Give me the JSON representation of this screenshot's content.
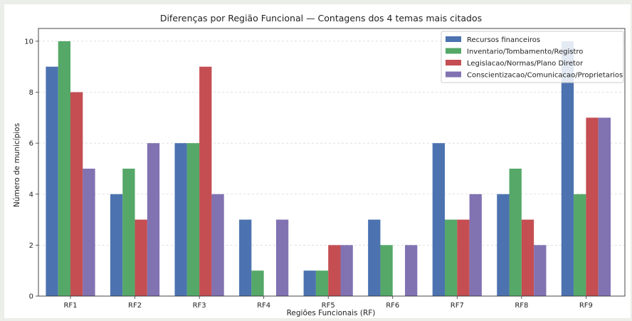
{
  "chart_data": {
    "type": "bar",
    "title": "Diferenças por Região Funcional — Contagens dos 4 temas mais citados",
    "xlabel": "Regiões Funcionais (RF)",
    "ylabel": "Número de municípios",
    "categories": [
      "RF1",
      "RF2",
      "RF3",
      "RF4",
      "RF5",
      "RF6",
      "RF7",
      "RF8",
      "RF9"
    ],
    "ylim": [
      0,
      10.5
    ],
    "yticks": [
      "0",
      "2",
      "4",
      "6",
      "8",
      "10"
    ],
    "grid": "horizontal dashed",
    "legend_position": "top-right",
    "series": [
      {
        "name": "Recursos financeiros",
        "color": "#4c72b0",
        "values": [
          9,
          4,
          6,
          3,
          1,
          3,
          6,
          4,
          10
        ]
      },
      {
        "name": "Inventario/Tombamento/Registro",
        "color": "#55a868",
        "values": [
          10,
          5,
          6,
          1,
          1,
          2,
          3,
          5,
          4
        ]
      },
      {
        "name": "Legislacao/Normas/Plano Diretor",
        "color": "#c44e52",
        "values": [
          8,
          3,
          9,
          0,
          2,
          0,
          3,
          3,
          7
        ]
      },
      {
        "name": "Conscientizacao/Comunicacao/Proprietarios",
        "color": "#8172b2",
        "values": [
          5,
          6,
          4,
          3,
          2,
          2,
          4,
          2,
          7
        ]
      }
    ]
  }
}
